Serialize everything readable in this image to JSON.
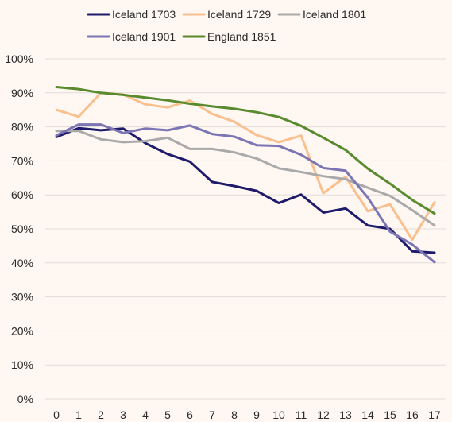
{
  "chart_data": {
    "type": "line",
    "title": "",
    "xlabel": "",
    "ylabel": "",
    "x": [
      0,
      1,
      2,
      3,
      4,
      5,
      6,
      7,
      8,
      9,
      10,
      11,
      12,
      13,
      14,
      15,
      16,
      17
    ],
    "x_tick_labels": [
      "0",
      "1",
      "2",
      "3",
      "4",
      "5",
      "6",
      "7",
      "8",
      "9",
      "10",
      "11",
      "12",
      "13",
      "14",
      "15",
      "16",
      "17"
    ],
    "ylim": [
      0,
      1
    ],
    "y_tick_values": [
      0,
      0.1,
      0.2,
      0.3,
      0.4,
      0.5,
      0.6,
      0.7,
      0.8,
      0.9,
      1.0
    ],
    "y_tick_labels": [
      "0%",
      "10%",
      "20%",
      "30%",
      "40%",
      "50%",
      "60%",
      "70%",
      "80%",
      "90%",
      "100%"
    ],
    "grid": true,
    "legend_position": "top",
    "series": [
      {
        "name": "Iceland 1703",
        "color": "#1f1b6b",
        "values": [
          0.77,
          0.796,
          0.79,
          0.795,
          0.752,
          0.72,
          0.698,
          0.638,
          0.626,
          0.612,
          0.576,
          0.601,
          0.548,
          0.56,
          0.51,
          0.5,
          0.434,
          0.43
        ]
      },
      {
        "name": "Iceland 1729",
        "color": "#f9c08e",
        "values": [
          0.85,
          0.83,
          0.9,
          0.895,
          0.866,
          0.857,
          0.877,
          0.838,
          0.815,
          0.776,
          0.755,
          0.774,
          0.605,
          0.653,
          0.552,
          0.572,
          0.468,
          0.578
        ]
      },
      {
        "name": "Iceland 1801",
        "color": "#aaaaaa",
        "values": [
          0.788,
          0.788,
          0.763,
          0.755,
          0.758,
          0.768,
          0.735,
          0.735,
          0.725,
          0.707,
          0.678,
          0.667,
          0.655,
          0.646,
          0.621,
          0.597,
          0.555,
          0.51
        ]
      },
      {
        "name": "Iceland 1901",
        "color": "#7b76b3",
        "values": [
          0.775,
          0.807,
          0.807,
          0.782,
          0.795,
          0.79,
          0.804,
          0.779,
          0.771,
          0.746,
          0.744,
          0.718,
          0.679,
          0.671,
          0.592,
          0.492,
          0.454,
          0.402
        ]
      },
      {
        "name": "England 1851",
        "color": "#5a8a2e",
        "values": [
          0.917,
          0.911,
          0.9,
          0.894,
          0.886,
          0.878,
          0.868,
          0.86,
          0.853,
          0.843,
          0.829,
          0.803,
          0.768,
          0.732,
          0.677,
          0.633,
          0.585,
          0.545
        ]
      }
    ]
  }
}
